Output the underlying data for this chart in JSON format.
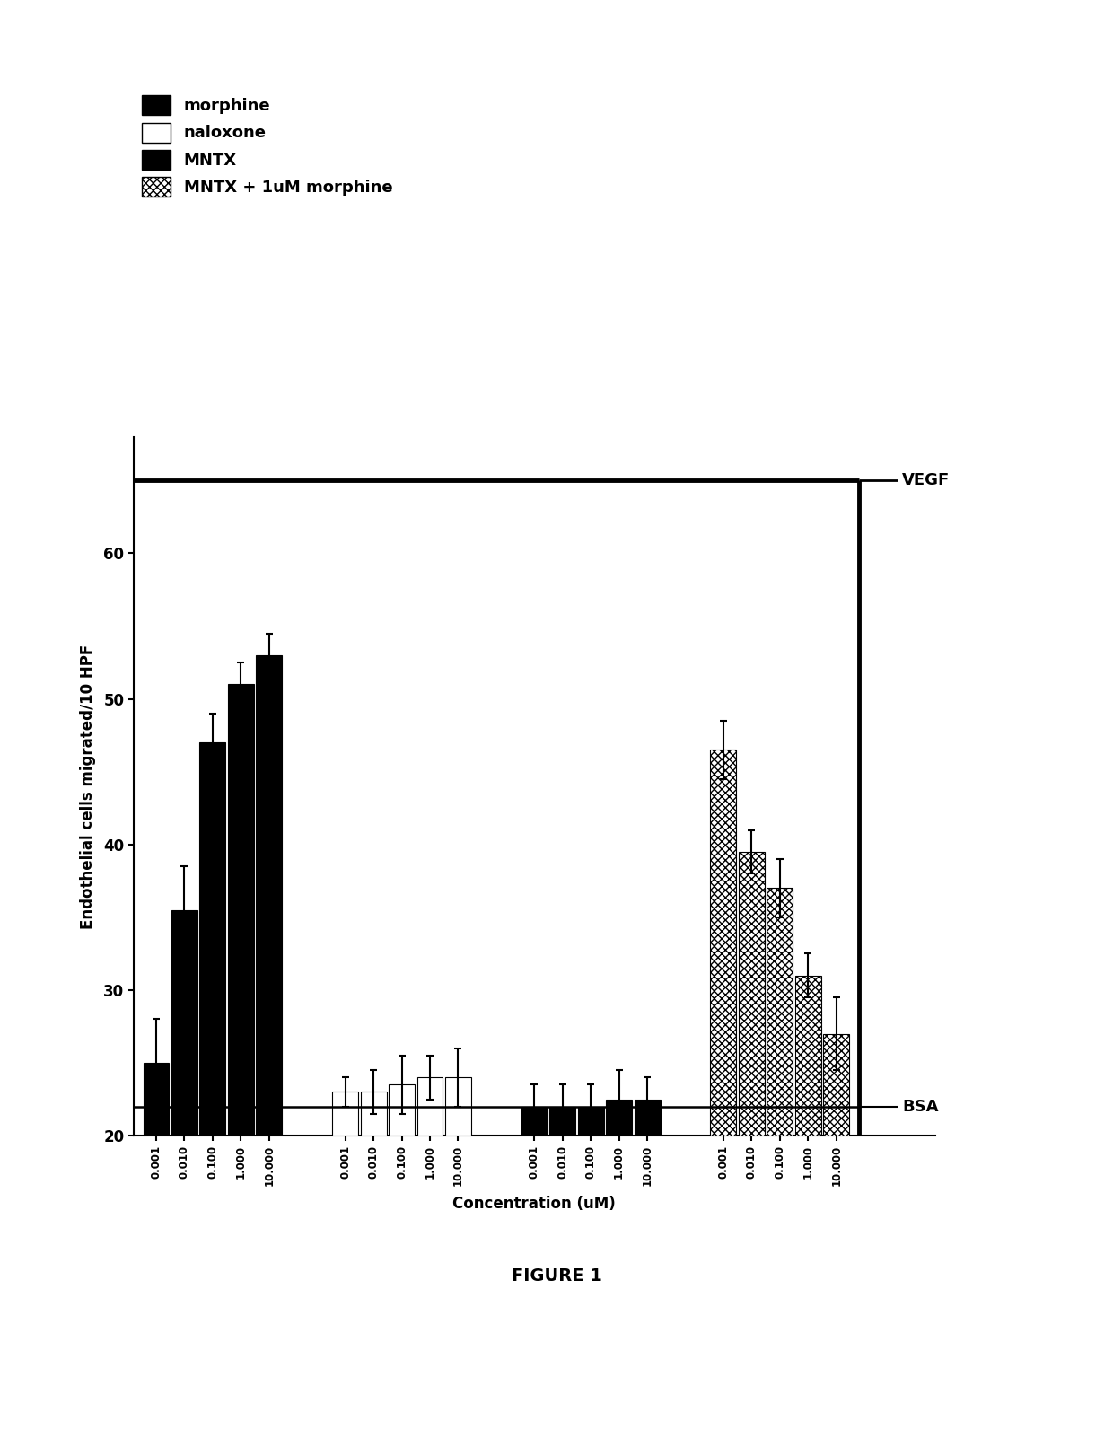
{
  "morphine_values": [
    25,
    35.5,
    47,
    51,
    53
  ],
  "morphine_errors": [
    3,
    3,
    2,
    1.5,
    1.5
  ],
  "naloxone_values": [
    23,
    23,
    23.5,
    24,
    24
  ],
  "naloxone_errors": [
    1.0,
    1.5,
    2.0,
    1.5,
    2.0
  ],
  "mntx_values": [
    22,
    22,
    22,
    22.5,
    22.5
  ],
  "mntx_errors": [
    1.5,
    1.5,
    1.5,
    2.0,
    1.5
  ],
  "mntx_morph_values": [
    46.5,
    39.5,
    37,
    31,
    27
  ],
  "mntx_morph_errors": [
    2.0,
    1.5,
    2.0,
    1.5,
    2.5
  ],
  "concentrations": [
    "0.001",
    "0.010",
    "0.100",
    "1.000",
    "10.000"
  ],
  "vegf_value": 65,
  "bsa_value": 22,
  "ylim_min": 20,
  "ylim_max": 68,
  "yticks": [
    20,
    30,
    40,
    50,
    60
  ],
  "ylabel": "Endothelial cells migrated/10 HPF",
  "xlabel": "Concentration (uM)",
  "vegf_label": "VEGF",
  "bsa_label": "BSA",
  "figure_label": "FIGURE 1",
  "legend_labels": [
    "morphine",
    "naloxone",
    "MNTX",
    "MNTX + 1uM morphine"
  ],
  "bar_width": 0.13
}
